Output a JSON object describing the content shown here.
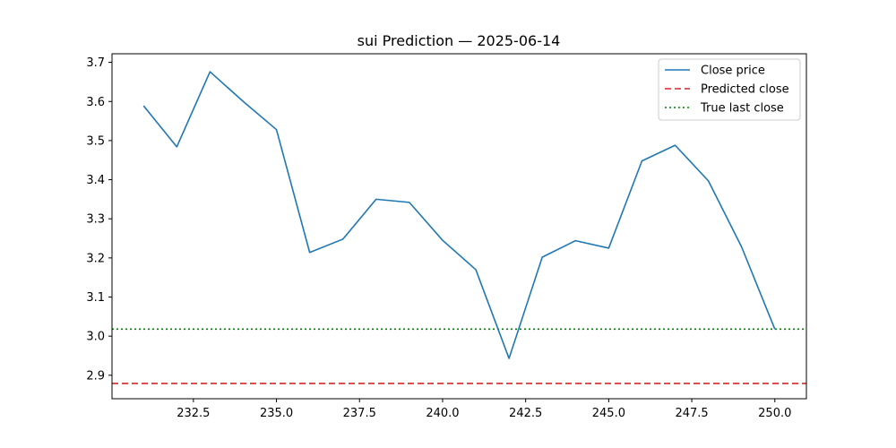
{
  "chart_data": {
    "type": "line",
    "title": "sui Prediction — 2025-06-14",
    "xlabel": "",
    "ylabel": "",
    "xlim": [
      230.05,
      250.95
    ],
    "ylim": [
      2.84,
      3.722
    ],
    "xticks": [
      232.5,
      235.0,
      237.5,
      240.0,
      242.5,
      245.0,
      247.5,
      250.0
    ],
    "xtick_labels": [
      "232.5",
      "235.0",
      "237.5",
      "240.0",
      "242.5",
      "245.0",
      "247.5",
      "250.0"
    ],
    "yticks": [
      2.9,
      3.0,
      3.1,
      3.2,
      3.3,
      3.4,
      3.5,
      3.6,
      3.7
    ],
    "ytick_labels": [
      "2.9",
      "3.0",
      "3.1",
      "3.2",
      "3.3",
      "3.4",
      "3.5",
      "3.6",
      "3.7"
    ],
    "series": [
      {
        "name": "Close price",
        "color": "#1f77b4",
        "style": "solid",
        "x": [
          231,
          232,
          233,
          234,
          235,
          236,
          237,
          238,
          239,
          240,
          241,
          242,
          243,
          244,
          245,
          246,
          247,
          248,
          249,
          250
        ],
        "y": [
          3.589,
          3.484,
          3.676,
          3.6,
          3.528,
          3.214,
          3.248,
          3.35,
          3.342,
          3.245,
          3.17,
          2.943,
          3.202,
          3.244,
          3.225,
          3.448,
          3.488,
          3.397,
          3.228,
          3.018
        ]
      }
    ],
    "hlines": [
      {
        "name": "Predicted close",
        "color": "#d62728",
        "style": "dashed",
        "y": 2.879
      },
      {
        "name": "True last close",
        "color": "#008000",
        "style": "dotted",
        "y": 3.018
      }
    ],
    "grid": false,
    "legend": {
      "placement": "top-right",
      "entries": [
        "Close price",
        "Predicted close",
        "True last close"
      ]
    }
  }
}
